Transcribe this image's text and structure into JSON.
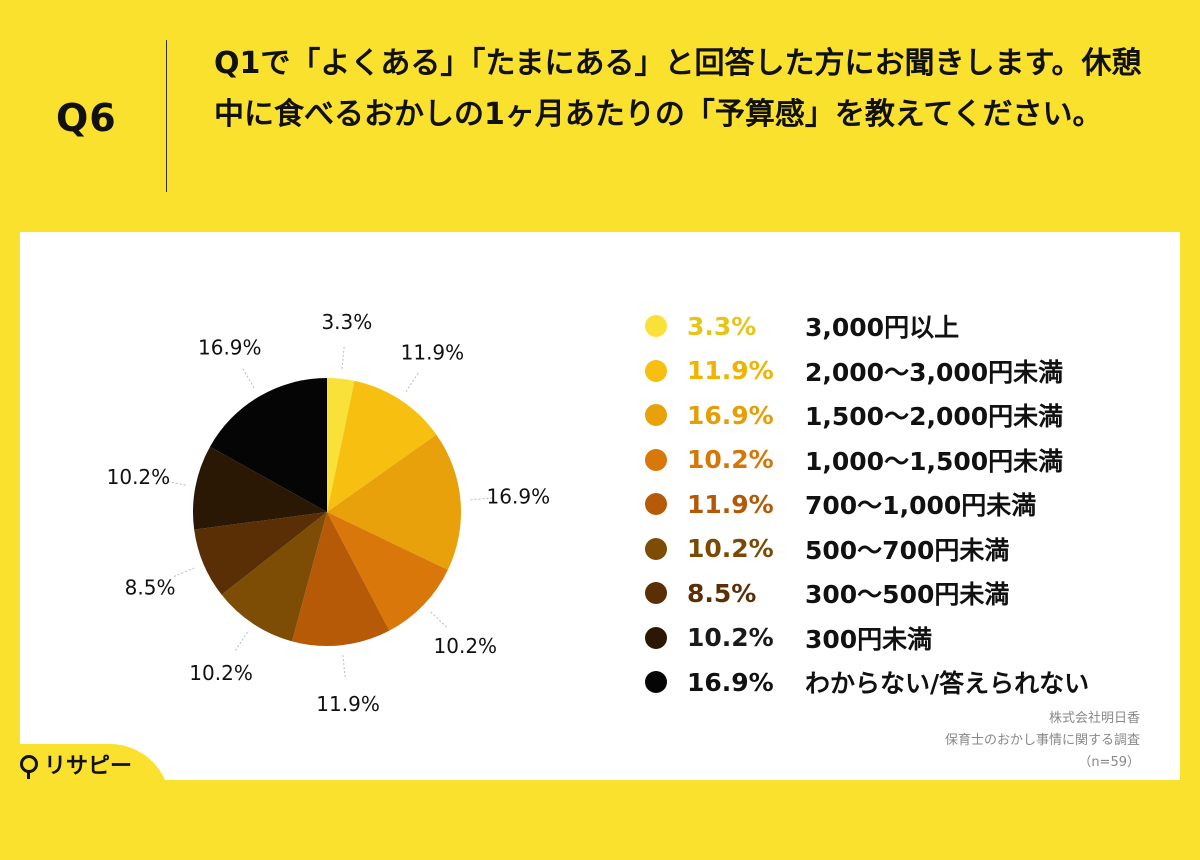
{
  "question": {
    "number": "Q6",
    "text": "Q1で「よくある」「たまにある」と回答した方にお聞きします。休憩中に食べるおかしの1ヶ月あたりの「予算感」を教えてください。"
  },
  "chart_data": {
    "type": "pie",
    "start": "12 o'clock, clockwise",
    "slices": [
      {
        "label": "3,000円以上",
        "value": 3.3,
        "value_label": "3.3%",
        "color": "#f9e13a",
        "legend_text_color": "#e7c419"
      },
      {
        "label": "2,000〜3,000円未満",
        "value": 11.9,
        "value_label": "11.9%",
        "color": "#f7bf10",
        "legend_text_color": "#f0b400"
      },
      {
        "label": "1,500〜2,000円未満",
        "value": 16.9,
        "value_label": "16.9%",
        "color": "#e8a10b",
        "legend_text_color": "#e59e08"
      },
      {
        "label": "1,000〜1,500円未満",
        "value": 10.2,
        "value_label": "10.2%",
        "color": "#d9770a",
        "legend_text_color": "#d67607"
      },
      {
        "label": "700〜1,000円未満",
        "value": 11.9,
        "value_label": "11.9%",
        "color": "#b65a07",
        "legend_text_color": "#b55806"
      },
      {
        "label": "500〜700円未満",
        "value": 10.2,
        "value_label": "10.2%",
        "color": "#7d4c05",
        "legend_text_color": "#7a4a04"
      },
      {
        "label": "300〜500円未満",
        "value": 8.5,
        "value_label": "8.5%",
        "color": "#5a2f05",
        "legend_text_color": "#5a2f05"
      },
      {
        "label": "300円未満",
        "value": 10.2,
        "value_label": "10.2%",
        "color": "#2a1805",
        "legend_text_color": "#1a1a1a"
      },
      {
        "label": "わからない/答えられない",
        "value": 16.9,
        "value_label": "16.9%",
        "color": "#050505",
        "legend_text_color": "#111111"
      }
    ]
  },
  "source": {
    "company": "株式会社明日香",
    "survey": "保育士のおかし事情に関する調査",
    "sample": "（n=59）"
  },
  "logo": {
    "text": "リサピー"
  }
}
